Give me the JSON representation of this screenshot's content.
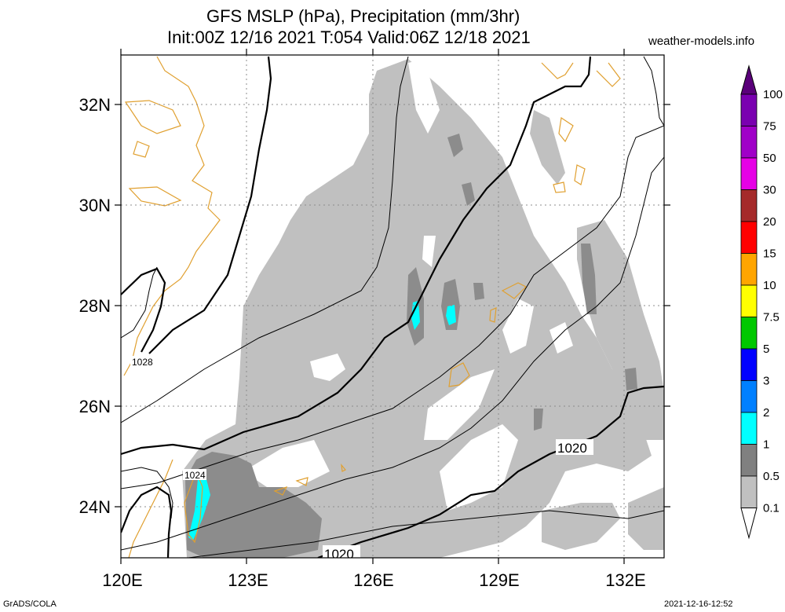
{
  "title": {
    "line1": "GFS MSLP (hPa), Precipitation (mm/3hr)",
    "line2": "Init:00Z 12/16 2021 T:054 Valid:06Z 12/18 2021"
  },
  "site": "weather-models.info",
  "footer": {
    "left": "GrADS/COLA",
    "right": "2021-12-16-12:52"
  },
  "axes": {
    "lat_labels": [
      "32N",
      "30N",
      "28N",
      "26N",
      "24N"
    ],
    "lon_labels": [
      "120E",
      "123E",
      "126E",
      "129E",
      "132E"
    ]
  },
  "isobar_labels": [
    "1028",
    "1024",
    "1020",
    "1020"
  ],
  "colorbar": {
    "labels": [
      "100",
      "75",
      "50",
      "30",
      "20",
      "15",
      "10",
      "7.5",
      "5",
      "3",
      "2",
      "1",
      "0.5",
      "0.1"
    ],
    "colors": [
      "#7a00b0",
      "#a000c8",
      "#e600e6",
      "#a52a2a",
      "#ff0000",
      "#ffa500",
      "#ffff00",
      "#00c800",
      "#0000ff",
      "#0080ff",
      "#00ffff",
      "#808080",
      "#c0c0c0"
    ]
  },
  "colors": {
    "coast": "#e0a030",
    "precip_light": "#c0c0c0",
    "precip_mid": "#8c8c8c",
    "precip_1mm": "#00ffff"
  }
}
